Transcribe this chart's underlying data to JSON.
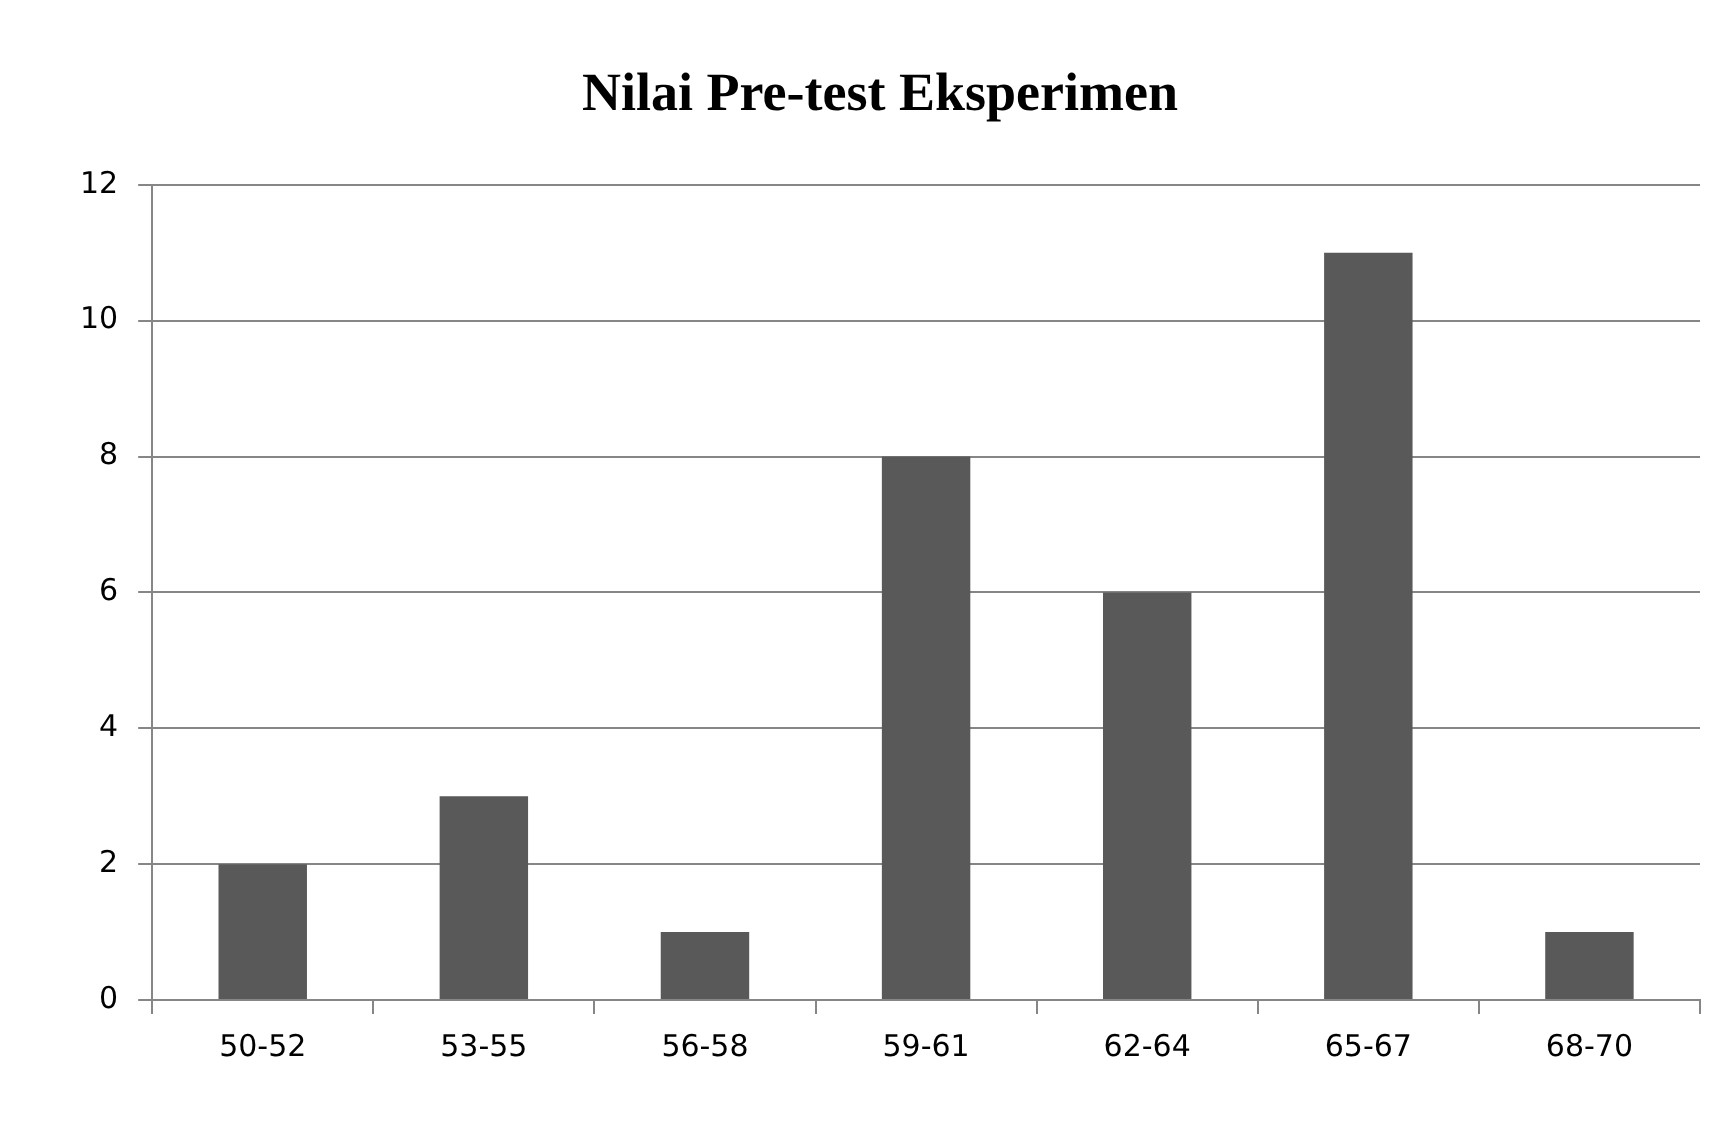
{
  "chart_data": {
    "type": "bar",
    "title": "Nilai Pre-test Eksperimen",
    "categories": [
      "50-52",
      "53-55",
      "56-58",
      "59-61",
      "62-64",
      "65-67",
      "68-70"
    ],
    "values": [
      2,
      3,
      1,
      8,
      6,
      11,
      1
    ],
    "color": "#595959",
    "ylim": [
      0,
      12
    ],
    "yticks": [
      0,
      2,
      4,
      6,
      8,
      10,
      12
    ],
    "grid": "y",
    "legend": false
  }
}
